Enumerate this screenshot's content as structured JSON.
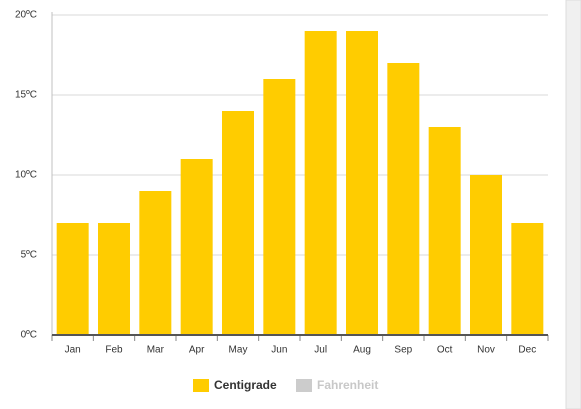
{
  "chart_data": {
    "type": "bar",
    "categories": [
      "Jan",
      "Feb",
      "Mar",
      "Apr",
      "May",
      "Jun",
      "Jul",
      "Aug",
      "Sep",
      "Oct",
      "Nov",
      "Dec"
    ],
    "series": [
      {
        "name": "Centigrade",
        "color": "#ffcc00",
        "values": [
          7,
          7,
          9,
          11,
          14,
          16,
          19,
          19,
          17,
          13,
          10,
          7
        ]
      },
      {
        "name": "Fahrenheit",
        "color": "#cccccc",
        "visible": false
      }
    ],
    "ylim": [
      0,
      20
    ],
    "yticks": [
      {
        "value": 0,
        "label": "0ºC"
      },
      {
        "value": 5,
        "label": "5ºC"
      },
      {
        "value": 10,
        "label": "10ºC"
      },
      {
        "value": 15,
        "label": "15ºC"
      },
      {
        "value": 20,
        "label": "20ºC"
      }
    ],
    "grid": true,
    "legend": "bottom"
  }
}
